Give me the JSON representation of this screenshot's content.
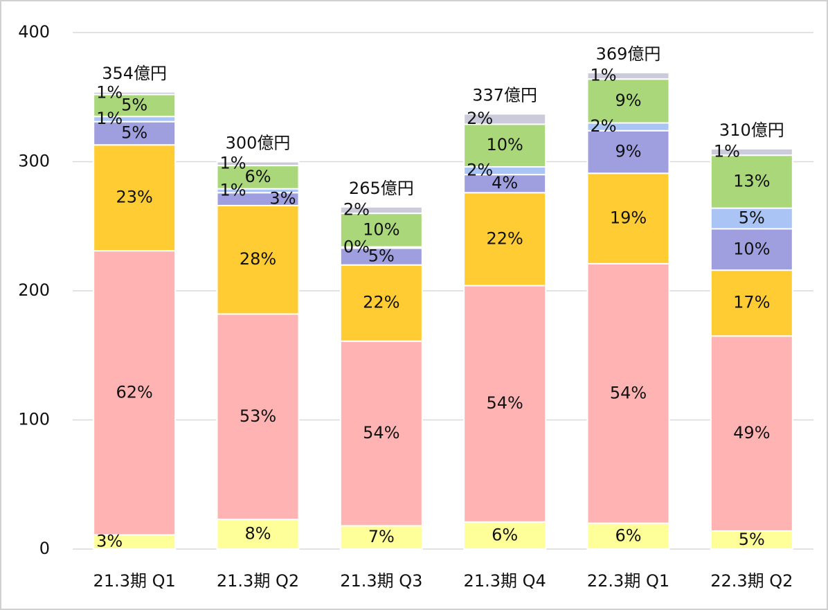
{
  "chart_data": {
    "type": "stacked_bar",
    "categories": [
      "21.3期 Q1",
      "21.3期 Q2",
      "21.3期 Q3",
      "21.3期 Q4",
      "22.3期 Q1",
      "22.3期 Q2"
    ],
    "series": [
      {
        "color": "#ffff99",
        "values": [
          11,
          23,
          18,
          21,
          20,
          14
        ],
        "value_labels": [
          "3%",
          "8%",
          "7%",
          "6%",
          "6%",
          "5%"
        ]
      },
      {
        "color": "#ffb3b3",
        "values": [
          220,
          159,
          143,
          183,
          201,
          151
        ],
        "value_labels": [
          "62%",
          "53%",
          "54%",
          "54%",
          "54%",
          "49%"
        ]
      },
      {
        "color": "#ffcc33",
        "values": [
          82,
          84,
          59,
          72,
          70,
          51
        ],
        "value_labels": [
          "23%",
          "28%",
          "22%",
          "22%",
          "19%",
          "17%"
        ]
      },
      {
        "color": "#9f9fe0",
        "values": [
          18,
          10,
          13,
          14,
          33,
          32
        ],
        "value_labels": [
          "5%",
          "3%",
          "5%",
          "4%",
          "9%",
          "10%"
        ]
      },
      {
        "color": "#a9c4f5",
        "values": [
          4,
          3,
          1,
          6,
          6,
          16
        ],
        "value_labels": [
          "1%",
          "1%",
          "0%",
          "2%",
          "2%",
          "5%"
        ]
      },
      {
        "color": "#aad77a",
        "values": [
          17,
          18,
          26,
          33,
          34,
          41
        ],
        "value_labels": [
          "5%",
          "6%",
          "10%",
          "10%",
          "9%",
          "13%"
        ]
      },
      {
        "color": "#cbcbdb",
        "values": [
          2,
          3,
          5,
          8,
          5,
          5
        ],
        "value_labels": [
          "1%",
          "1%",
          "2%",
          "2%",
          "1%",
          "1%"
        ]
      }
    ],
    "total_labels": [
      "354億円",
      "300億円",
      "265億円",
      "337億円",
      "369億円",
      "310億円"
    ],
    "ylim": [
      0,
      400
    ],
    "yticks": [
      0,
      100,
      200,
      300,
      400
    ],
    "grid": true
  }
}
